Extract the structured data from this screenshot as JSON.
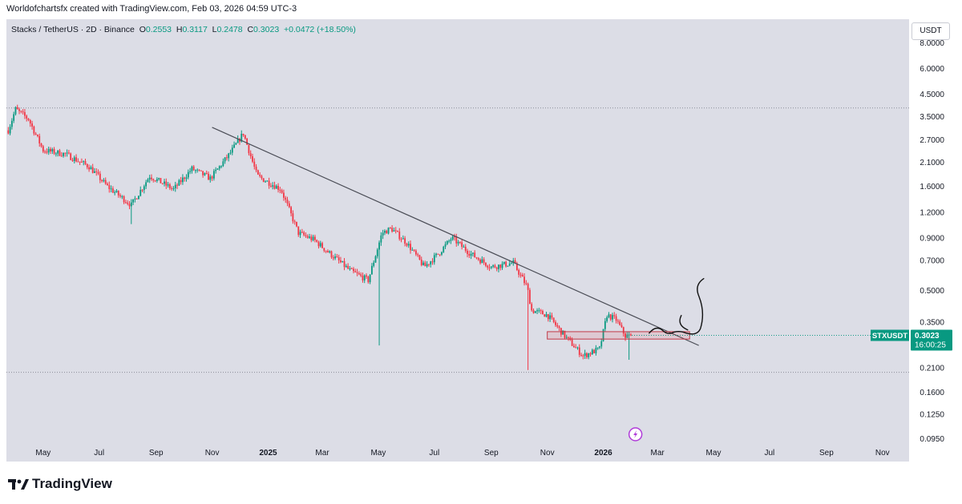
{
  "header": {
    "text": "Worldofchartsfx created with TradingView.com, Feb 03, 2026 04:59 UTC-3"
  },
  "symbol_info": {
    "title": "Stacks / TetherUS · 2D · Binance",
    "open_label": "O",
    "open": "0.2553",
    "high_label": "H",
    "high": "0.3117",
    "low_label": "L",
    "low": "0.2478",
    "close_label": "C",
    "close": "0.3023",
    "change": "+0.0472 (+18.50%)"
  },
  "currency_button": "USDT",
  "price_tag": {
    "symbol": "STXUSDT",
    "price": "0.3023",
    "countdown": "16:00:25"
  },
  "footer": {
    "brand": "TradingView"
  },
  "colors": {
    "up": "#089981",
    "down": "#f23645",
    "panel": "#dcdde6",
    "line": "#4a4c55",
    "tag": "#089981"
  },
  "chart_data": {
    "type": "candlestick",
    "scale": "log",
    "title": "Stacks / TetherUS · 2D · Binance",
    "y_ticks": [
      "8.0000",
      "6.0000",
      "4.5000",
      "3.5000",
      "2.7000",
      "2.1000",
      "1.6000",
      "1.2000",
      "0.9000",
      "0.7000",
      "0.5000",
      "0.3500",
      "0.2100",
      "0.1600",
      "0.1250",
      "0.0950"
    ],
    "x_ticks": [
      "May",
      "Jul",
      "Sep",
      "Nov",
      "2025",
      "Mar",
      "May",
      "Jul",
      "Sep",
      "Nov",
      "2026",
      "Mar",
      "May",
      "Jul",
      "Sep",
      "Nov"
    ],
    "x_tick_dates": [
      "2024-05-01",
      "2024-07-01",
      "2024-09-01",
      "2024-11-01",
      "2025-01-01",
      "2025-03-01",
      "2025-05-01",
      "2025-07-01",
      "2025-09-01",
      "2025-11-01",
      "2026-01-01",
      "2026-03-01",
      "2026-05-01",
      "2026-07-01",
      "2026-09-01",
      "2026-11-01"
    ],
    "price_keypoints": [
      {
        "date": "2024-03-24",
        "price": 3.0
      },
      {
        "date": "2024-04-01",
        "price": 3.8
      },
      {
        "date": "2024-04-15",
        "price": 3.4
      },
      {
        "date": "2024-05-01",
        "price": 2.4
      },
      {
        "date": "2024-05-25",
        "price": 2.3
      },
      {
        "date": "2024-06-20",
        "price": 2.0
      },
      {
        "date": "2024-07-10",
        "price": 1.6
      },
      {
        "date": "2024-08-05",
        "price": 1.3
      },
      {
        "date": "2024-08-25",
        "price": 1.8
      },
      {
        "date": "2024-09-20",
        "price": 1.55
      },
      {
        "date": "2024-10-10",
        "price": 1.95
      },
      {
        "date": "2024-10-30",
        "price": 1.75
      },
      {
        "date": "2024-11-20",
        "price": 2.3
      },
      {
        "date": "2024-12-05",
        "price": 2.9
      },
      {
        "date": "2024-12-20",
        "price": 1.8
      },
      {
        "date": "2025-01-15",
        "price": 1.55
      },
      {
        "date": "2025-02-03",
        "price": 0.95
      },
      {
        "date": "2025-02-20",
        "price": 0.88
      },
      {
        "date": "2025-03-10",
        "price": 0.75
      },
      {
        "date": "2025-04-01",
        "price": 0.62
      },
      {
        "date": "2025-04-20",
        "price": 0.56
      },
      {
        "date": "2025-05-05",
        "price": 0.95
      },
      {
        "date": "2025-05-15",
        "price": 1.0
      },
      {
        "date": "2025-06-01",
        "price": 0.85
      },
      {
        "date": "2025-06-20",
        "price": 0.65
      },
      {
        "date": "2025-07-05",
        "price": 0.75
      },
      {
        "date": "2025-07-20",
        "price": 0.9
      },
      {
        "date": "2025-08-10",
        "price": 0.75
      },
      {
        "date": "2025-09-01",
        "price": 0.65
      },
      {
        "date": "2025-09-25",
        "price": 0.68
      },
      {
        "date": "2025-10-10",
        "price": 0.52
      },
      {
        "date": "2025-10-15",
        "price": 0.4
      },
      {
        "date": "2025-11-01",
        "price": 0.38
      },
      {
        "date": "2025-11-20",
        "price": 0.3
      },
      {
        "date": "2025-12-10",
        "price": 0.24
      },
      {
        "date": "2025-12-28",
        "price": 0.26
      },
      {
        "date": "2026-01-05",
        "price": 0.38
      },
      {
        "date": "2026-01-15",
        "price": 0.36
      },
      {
        "date": "2026-01-25",
        "price": 0.3
      },
      {
        "date": "2026-02-01",
        "price": 0.3023
      }
    ],
    "wicks": [
      {
        "date": "2024-08-05",
        "low": 1.05
      },
      {
        "date": "2025-05-01",
        "low": 0.27
      },
      {
        "date": "2025-10-10",
        "low": 0.205
      },
      {
        "date": "2026-01-28",
        "low": 0.23
      }
    ],
    "trendline": {
      "start": {
        "date": "2024-11-01",
        "price": 3.1
      },
      "end": {
        "date": "2026-04-15",
        "price": 0.27
      }
    },
    "dotted_levels": [
      3.85,
      0.2
    ],
    "zone": {
      "start": "2025-11-01",
      "end": "2026-04-05",
      "low": 0.29,
      "high": 0.315
    },
    "last_price": 0.3023,
    "y_range": [
      0.085,
      10.4
    ],
    "x_range": [
      "2024-03-22",
      "2026-11-30"
    ]
  }
}
